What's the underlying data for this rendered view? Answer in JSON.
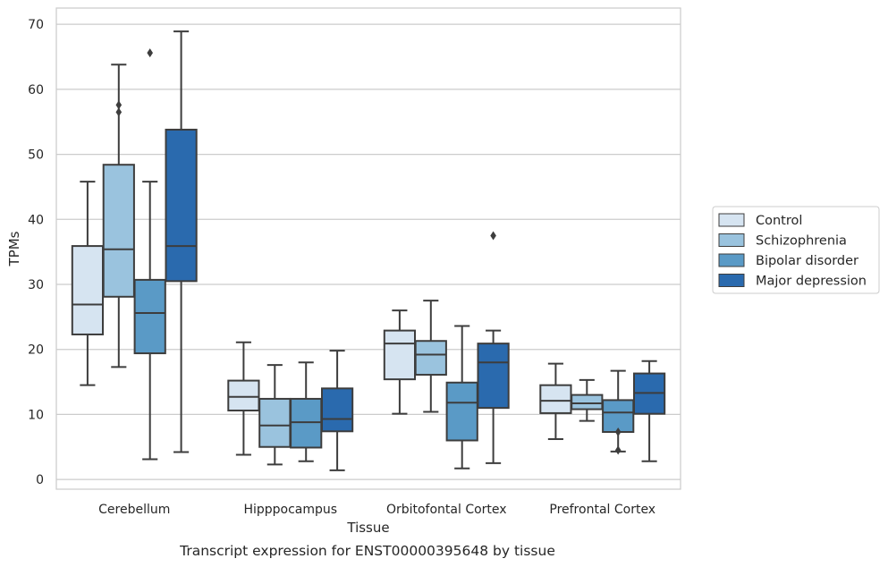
{
  "chart_data": {
    "type": "box",
    "title": "",
    "caption": "Transcript expression for ENST00000395648 by tissue",
    "xlabel": "Tissue",
    "ylabel": "TPMs",
    "ylim": [
      -1.5,
      72.5
    ],
    "yticks": [
      0,
      10,
      20,
      30,
      40,
      50,
      60,
      70
    ],
    "grid": "horizontal",
    "legend_placement": "right",
    "categories": [
      "Cerebellum",
      "Hipppocampus",
      "Orbitofontal Cortex",
      "Prefrontal Cortex"
    ],
    "series": [
      {
        "name": "Control",
        "color": "#d6e4f1",
        "boxes": [
          {
            "whislo": 14.5,
            "q1": 22.3,
            "med": 26.9,
            "q3": 35.9,
            "whishi": 45.8,
            "fliers": []
          },
          {
            "whislo": 3.8,
            "q1": 10.6,
            "med": 12.7,
            "q3": 15.2,
            "whishi": 21.1,
            "fliers": []
          },
          {
            "whislo": 10.1,
            "q1": 15.4,
            "med": 20.9,
            "q3": 22.9,
            "whishi": 26.0,
            "fliers": []
          },
          {
            "whislo": 6.2,
            "q1": 10.2,
            "med": 12.1,
            "q3": 14.5,
            "whishi": 17.8,
            "fliers": []
          }
        ]
      },
      {
        "name": "Schizophrenia",
        "color": "#9ac3de",
        "boxes": [
          {
            "whislo": 17.3,
            "q1": 28.1,
            "med": 35.4,
            "q3": 48.4,
            "whishi": 63.8,
            "fliers": [
              57.6,
              56.5
            ]
          },
          {
            "whislo": 2.3,
            "q1": 5.0,
            "med": 8.3,
            "q3": 12.4,
            "whishi": 17.6,
            "fliers": []
          },
          {
            "whislo": 10.4,
            "q1": 16.1,
            "med": 19.2,
            "q3": 21.3,
            "whishi": 27.5,
            "fliers": []
          },
          {
            "whislo": 9.0,
            "q1": 10.8,
            "med": 11.7,
            "q3": 13.0,
            "whishi": 15.3,
            "fliers": []
          }
        ]
      },
      {
        "name": "Bipolar disorder",
        "color": "#5a9ac6",
        "boxes": [
          {
            "whislo": 3.1,
            "q1": 19.4,
            "med": 25.6,
            "q3": 30.7,
            "whishi": 45.8,
            "fliers": [
              65.6
            ]
          },
          {
            "whislo": 2.8,
            "q1": 4.9,
            "med": 8.8,
            "q3": 12.4,
            "whishi": 18.0,
            "fliers": []
          },
          {
            "whislo": 1.7,
            "q1": 6.0,
            "med": 11.8,
            "q3": 14.9,
            "whishi": 23.6,
            "fliers": []
          },
          {
            "whislo": 4.3,
            "q1": 7.3,
            "med": 10.3,
            "q3": 12.2,
            "whishi": 16.7,
            "fliers": [
              7.3,
              4.5
            ]
          }
        ]
      },
      {
        "name": "Major depression",
        "color": "#2a6aae",
        "boxes": [
          {
            "whislo": 4.2,
            "q1": 30.5,
            "med": 35.9,
            "q3": 53.8,
            "whishi": 68.9,
            "fliers": []
          },
          {
            "whislo": 1.4,
            "q1": 7.4,
            "med": 9.3,
            "q3": 14.0,
            "whishi": 19.8,
            "fliers": []
          },
          {
            "whislo": 2.5,
            "q1": 11.0,
            "med": 18.0,
            "q3": 20.9,
            "whishi": 22.9,
            "fliers": [
              37.5
            ]
          },
          {
            "whislo": 2.8,
            "q1": 10.1,
            "med": 13.3,
            "q3": 16.3,
            "whishi": 18.2,
            "fliers": []
          }
        ]
      }
    ]
  }
}
